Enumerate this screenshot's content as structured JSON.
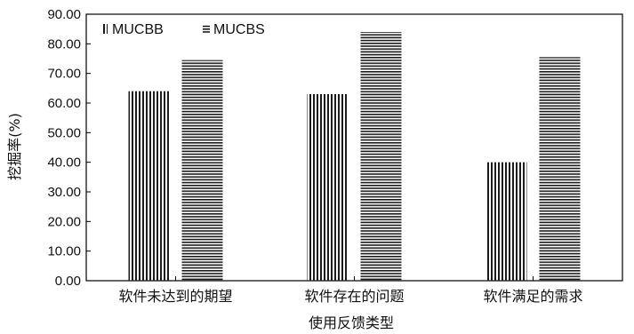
{
  "chart_data": {
    "type": "bar",
    "title": "",
    "xlabel": "使用反馈类型",
    "ylabel": "挖掘率(%)",
    "categories": [
      "软件未达到的期望",
      "软件存在的问题",
      "软件满足的需求"
    ],
    "series": [
      {
        "name": "MUCBB",
        "values": [
          64.0,
          63.0,
          40.0
        ],
        "pattern": "vertical-lines"
      },
      {
        "name": "MUCBS",
        "values": [
          74.5,
          84.0,
          75.5
        ],
        "pattern": "horizontal-lines"
      }
    ],
    "ylim": [
      0,
      90
    ],
    "yticks": [
      "0.00",
      "10.00",
      "20.00",
      "30.00",
      "40.00",
      "50.00",
      "60.00",
      "70.00",
      "80.00",
      "90.00"
    ],
    "grid": false,
    "legend_position": "top-left",
    "colors": {
      "bar_line": "#1a1a1a",
      "axis": "#000000"
    }
  }
}
